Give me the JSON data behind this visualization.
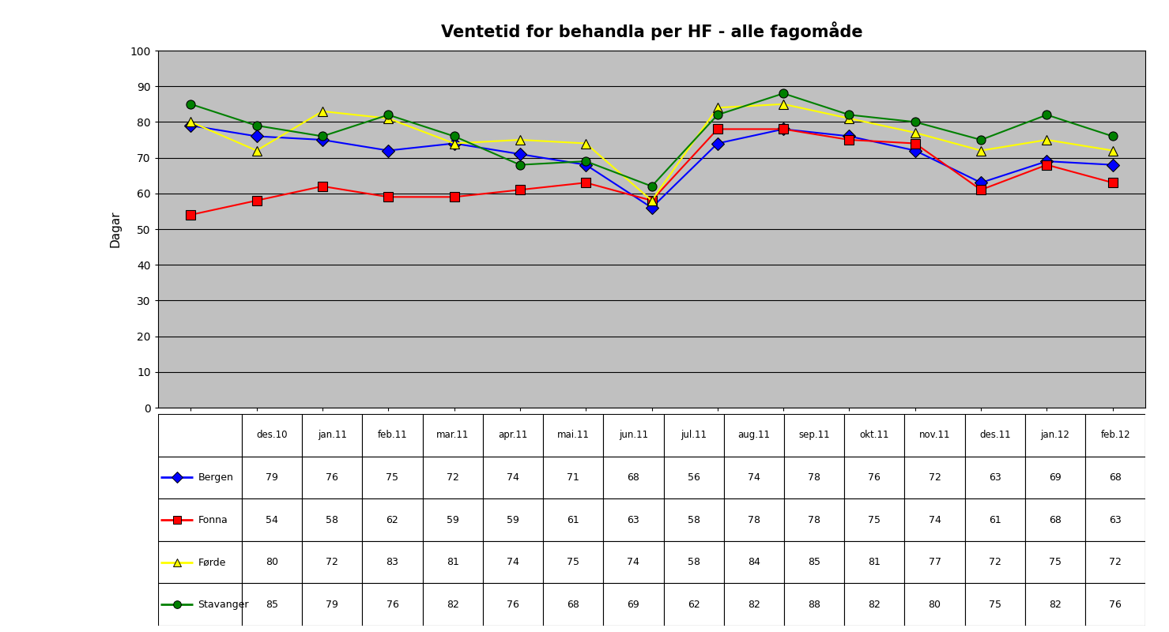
{
  "title": "Ventetid for behandla per HF - alle fagomåde",
  "ylabel": "Dagar",
  "categories": [
    "des.10",
    "jan.11",
    "feb.11",
    "mar.11",
    "apr.11",
    "mai.11",
    "jun.11",
    "jul.11",
    "aug.11",
    "sep.11",
    "okt.11",
    "nov.11",
    "des.11",
    "jan.12",
    "feb.12"
  ],
  "series": [
    {
      "name": "Bergen",
      "color": "#0000FF",
      "marker": "D",
      "values": [
        79,
        76,
        75,
        72,
        74,
        71,
        68,
        56,
        74,
        78,
        76,
        72,
        63,
        69,
        68
      ]
    },
    {
      "name": "Fonna",
      "color": "#FF0000",
      "marker": "s",
      "values": [
        54,
        58,
        62,
        59,
        59,
        61,
        63,
        58,
        78,
        78,
        75,
        74,
        61,
        68,
        63
      ]
    },
    {
      "name": "Førde",
      "color": "#FFFF00",
      "marker": "^",
      "values": [
        80,
        72,
        83,
        81,
        74,
        75,
        74,
        58,
        84,
        85,
        81,
        77,
        72,
        75,
        72
      ]
    },
    {
      "name": "Stavanger",
      "color": "#008000",
      "marker": "o",
      "values": [
        85,
        79,
        76,
        82,
        76,
        68,
        69,
        62,
        82,
        88,
        82,
        80,
        75,
        82,
        76
      ]
    }
  ],
  "ylim": [
    0,
    100
  ],
  "yticks": [
    0,
    10,
    20,
    30,
    40,
    50,
    60,
    70,
    80,
    90,
    100
  ],
  "title_fontsize": 15,
  "axis_bg_color": "#C0C0C0",
  "fig_bg_color": "#FFFFFF",
  "grid_color": "#000000"
}
